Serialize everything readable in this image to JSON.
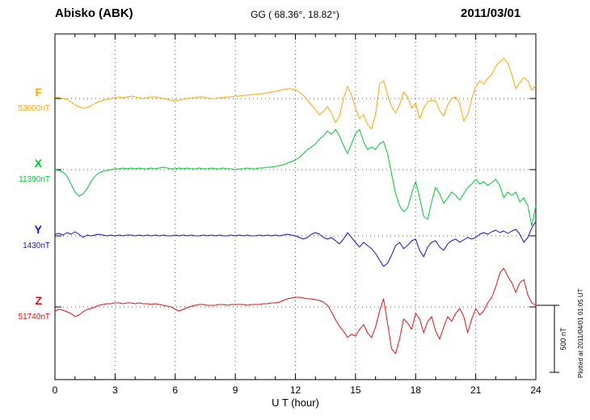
{
  "header": {
    "station": "Abisko (ABK)",
    "coords": "GG ( 68.36°, 18.82°)",
    "date": "2011/03/01"
  },
  "axis": {
    "xlabel": "U T (hour)",
    "xmin": 0,
    "xmax": 24,
    "xticks": [
      0,
      3,
      6,
      9,
      12,
      15,
      18,
      21,
      24
    ],
    "minor_tick_every": 1
  },
  "footnote": "Plotted at 2011/04/01 01:05 UT",
  "chart_data": {
    "type": "line",
    "xlabel": "U T (hour)",
    "x_range_hours": [
      0,
      24
    ],
    "x_step_hours": 0.2,
    "grid": "dotted vertical every 3 h, dotted horizontal at each component baseline",
    "scale_bar": {
      "label": "500 nT",
      "nT": 500
    },
    "series": [
      {
        "name": "F",
        "base_label": "53000nT",
        "base_value_nT": 53000,
        "color": "#FFA500",
        "offsets_nT": [
          12,
          6,
          0,
          -6,
          -24,
          -48,
          -60,
          -72,
          -66,
          -54,
          -36,
          -24,
          -12,
          -6,
          0,
          6,
          12,
          6,
          12,
          18,
          12,
          6,
          0,
          6,
          12,
          12,
          6,
          0,
          -6,
          -12,
          -18,
          -12,
          -6,
          0,
          6,
          6,
          12,
          12,
          6,
          0,
          0,
          6,
          6,
          12,
          12,
          18,
          18,
          24,
          24,
          30,
          30,
          36,
          36,
          42,
          48,
          54,
          60,
          66,
          72,
          72,
          66,
          48,
          24,
          -12,
          -48,
          -84,
          -120,
          -96,
          -60,
          -108,
          -180,
          -132,
          0,
          90,
          30,
          -72,
          -150,
          -120,
          -192,
          -228,
          -120,
          108,
          132,
          30,
          -60,
          -108,
          -48,
          48,
          12,
          -72,
          -36,
          -150,
          -72,
          -24,
          -12,
          -18,
          -90,
          -132,
          -48,
          0,
          12,
          -36,
          -168,
          -120,
          0,
          90,
          132,
          108,
          150,
          180,
          240,
          276,
          300,
          264,
          180,
          72,
          120,
          156,
          132,
          60,
          96
        ]
      },
      {
        "name": "X",
        "base_label": "11390nT",
        "base_value_nT": 11390,
        "color": "#00C832",
        "offsets_nT": [
          0,
          -6,
          -18,
          -48,
          -108,
          -168,
          -198,
          -180,
          -144,
          -90,
          -48,
          -24,
          -12,
          -6,
          0,
          6,
          6,
          12,
          6,
          12,
          6,
          12,
          6,
          6,
          12,
          6,
          12,
          18,
          12,
          6,
          6,
          12,
          6,
          12,
          6,
          6,
          12,
          6,
          6,
          12,
          6,
          6,
          12,
          6,
          6,
          0,
          6,
          6,
          12,
          6,
          6,
          12,
          12,
          18,
          18,
          24,
          30,
          36,
          48,
          60,
          72,
          90,
          120,
          150,
          168,
          192,
          228,
          252,
          288,
          264,
          300,
          252,
          180,
          120,
          192,
          270,
          300,
          210,
          150,
          168,
          150,
          192,
          210,
          120,
          -30,
          -180,
          -270,
          -312,
          -288,
          -180,
          -90,
          -210,
          -348,
          -372,
          -240,
          -132,
          -180,
          -252,
          -210,
          -168,
          -192,
          -228,
          -180,
          -132,
          -108,
          -72,
          -108,
          -90,
          -120,
          -96,
          -72,
          -120,
          -210,
          -168,
          -192,
          -168,
          -240,
          -210,
          -270,
          -420,
          -270
        ]
      },
      {
        "name": "Y",
        "base_label": "1430nT",
        "base_value_nT": 1430,
        "color": "#1414CD",
        "offsets_nT": [
          12,
          18,
          6,
          24,
          12,
          30,
          12,
          -12,
          6,
          0,
          6,
          12,
          6,
          0,
          6,
          0,
          6,
          0,
          6,
          6,
          0,
          6,
          0,
          6,
          0,
          6,
          0,
          6,
          0,
          0,
          6,
          0,
          6,
          0,
          6,
          0,
          0,
          6,
          0,
          6,
          0,
          6,
          0,
          0,
          6,
          0,
          6,
          0,
          6,
          0,
          0,
          6,
          0,
          6,
          0,
          6,
          0,
          6,
          12,
          6,
          0,
          -12,
          -24,
          -12,
          12,
          24,
          12,
          -12,
          -24,
          -12,
          -36,
          -60,
          -24,
          24,
          -12,
          -48,
          -84,
          -48,
          -72,
          -96,
          -132,
          -180,
          -228,
          -204,
          -144,
          -72,
          -48,
          -96,
          -72,
          -36,
          -24,
          -108,
          -156,
          -84,
          -48,
          -36,
          -84,
          -108,
          -60,
          -36,
          -24,
          -48,
          -30,
          -12,
          -24,
          -12,
          12,
          24,
          12,
          30,
          42,
          24,
          36,
          18,
          36,
          48,
          12,
          -48,
          -12,
          60,
          108
        ]
      },
      {
        "name": "Z",
        "base_label": "51740nT",
        "base_value_nT": 51740,
        "color": "#DC1414",
        "offsets_nT": [
          -30,
          -18,
          -24,
          -36,
          -48,
          -72,
          -60,
          -36,
          -18,
          -12,
          0,
          12,
          18,
          24,
          24,
          30,
          30,
          24,
          30,
          30,
          24,
          30,
          24,
          24,
          18,
          24,
          18,
          12,
          6,
          0,
          -18,
          -30,
          -18,
          -6,
          6,
          12,
          18,
          18,
          12,
          12,
          12,
          18,
          18,
          12,
          18,
          18,
          18,
          18,
          12,
          18,
          18,
          18,
          24,
          24,
          30,
          30,
          36,
          48,
          60,
          66,
          72,
          72,
          66,
          60,
          60,
          54,
          48,
          36,
          12,
          -36,
          -96,
          -144,
          -180,
          -228,
          -204,
          -216,
          -168,
          -132,
          -192,
          -228,
          -150,
          -30,
          60,
          -120,
          -312,
          -348,
          -240,
          -90,
          -120,
          -168,
          -48,
          -90,
          -192,
          -108,
          -72,
          -180,
          -240,
          -150,
          -72,
          -108,
          -48,
          -12,
          -72,
          -192,
          -90,
          -12,
          -60,
          -30,
          30,
          72,
          150,
          252,
          288,
          228,
          180,
          108,
          180,
          204,
          90,
          30,
          12
        ]
      }
    ]
  }
}
